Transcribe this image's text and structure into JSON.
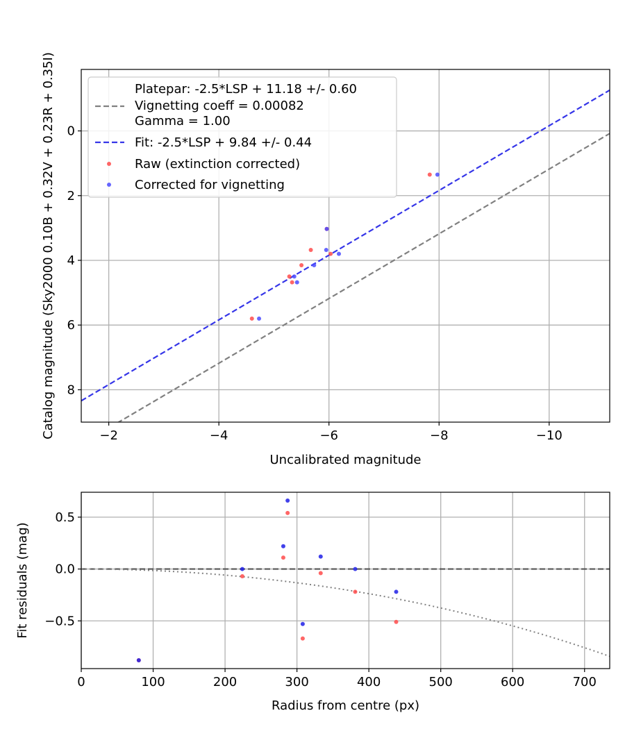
{
  "chart_data": [
    {
      "type": "scatter",
      "xlabel": "Uncalibrated magnitude",
      "ylabel": "Catalog magnitude (Sky2000 0.10B + 0.32V + 0.23R + 0.35I)",
      "xlim": [
        -1.5,
        -11.1
      ],
      "ylim": [
        9.0,
        -1.9
      ],
      "x_inverted": true,
      "y_inverted": true,
      "xticks": [
        -2,
        -4,
        -6,
        -8,
        -10
      ],
      "xtick_labels": [
        "−2",
        "−4",
        "−6",
        "−8",
        "−10"
      ],
      "yticks": [
        0,
        2,
        4,
        6,
        8
      ],
      "ytick_labels": [
        "0",
        "2",
        "4",
        "6",
        "8"
      ],
      "grid": true,
      "legend_position": "top-left",
      "legend": [
        {
          "text": "Platepar: -2.5*LSP + 11.18 +/- 0.60",
          "marker": "none"
        },
        {
          "text": "Vignetting coeff = 0.00082",
          "marker": "dashed-gray"
        },
        {
          "text": "Gamma = 1.00",
          "marker": "none"
        },
        {
          "text": "Fit: -2.5*LSP + 9.84 +/- 0.44",
          "marker": "dashed-blue"
        },
        {
          "text": "Raw (extinction corrected)",
          "marker": "red-dot"
        },
        {
          "text": "Corrected for vignetting",
          "marker": "blue-dot"
        }
      ],
      "lines": [
        {
          "name": "Platepar: -2.5*LSP + 11.18 +/- 0.60",
          "color": "#808080",
          "style": "dashed",
          "intercept": 11.18,
          "slope": 1.0
        },
        {
          "name": "Fit: -2.5*LSP + 9.84 +/- 0.44",
          "color": "#3535e8",
          "style": "dashed",
          "intercept": 9.84,
          "slope": 1.0
        }
      ],
      "series": [
        {
          "name": "Raw (extinction corrected)",
          "color": "#ff4b4b",
          "points": [
            {
              "x": -4.6,
              "y": 5.8
            },
            {
              "x": -5.28,
              "y": 4.5
            },
            {
              "x": -5.33,
              "y": 4.68
            },
            {
              "x": -5.5,
              "y": 4.15
            },
            {
              "x": -5.67,
              "y": 3.68
            },
            {
              "x": -5.96,
              "y": 3.03
            },
            {
              "x": -6.03,
              "y": 3.8
            },
            {
              "x": -7.83,
              "y": 1.35
            }
          ]
        },
        {
          "name": "Corrected for vignetting",
          "color": "#4b4bff",
          "points": [
            {
              "x": -4.73,
              "y": 5.8
            },
            {
              "x": -5.37,
              "y": 4.5
            },
            {
              "x": -5.42,
              "y": 4.68
            },
            {
              "x": -5.73,
              "y": 4.15
            },
            {
              "x": -5.95,
              "y": 3.68
            },
            {
              "x": -5.96,
              "y": 3.03
            },
            {
              "x": -6.18,
              "y": 3.8
            },
            {
              "x": -7.97,
              "y": 1.35
            }
          ]
        }
      ]
    },
    {
      "type": "scatter",
      "xlabel": "Radius from centre (px)",
      "ylabel": "Fit residuals (mag)",
      "xlim": [
        0,
        735
      ],
      "ylim": [
        -0.96,
        0.74
      ],
      "xticks": [
        0,
        100,
        200,
        300,
        400,
        500,
        600,
        700
      ],
      "xtick_labels": [
        "0",
        "100",
        "200",
        "300",
        "400",
        "500",
        "600",
        "700"
      ],
      "yticks": [
        0.5,
        0.0,
        -0.5
      ],
      "ytick_labels": [
        "0.5",
        "0.0",
        "−0.5"
      ],
      "grid": true,
      "reference_line": {
        "y": 0.0,
        "color": "#555555",
        "style": "dashed"
      },
      "vignetting_curve": {
        "coeff": 0.00082,
        "color": "#808080",
        "style": "dotted"
      },
      "series": [
        {
          "name": "Raw (extinction corrected)",
          "color": "#ff4b4b",
          "points": [
            {
              "x": 80,
              "y": -0.88
            },
            {
              "x": 224,
              "y": -0.07
            },
            {
              "x": 281,
              "y": 0.11
            },
            {
              "x": 287,
              "y": 0.54
            },
            {
              "x": 308,
              "y": -0.67
            },
            {
              "x": 333,
              "y": -0.04
            },
            {
              "x": 381,
              "y": -0.22
            },
            {
              "x": 438,
              "y": -0.51
            }
          ]
        },
        {
          "name": "Corrected for vignetting",
          "color": "#2020e6",
          "points": [
            {
              "x": 80,
              "y": -0.88
            },
            {
              "x": 224,
              "y": 0.0
            },
            {
              "x": 281,
              "y": 0.22
            },
            {
              "x": 287,
              "y": 0.66
            },
            {
              "x": 308,
              "y": -0.53
            },
            {
              "x": 333,
              "y": 0.12
            },
            {
              "x": 381,
              "y": 0.0
            },
            {
              "x": 438,
              "y": -0.22
            }
          ]
        }
      ]
    }
  ]
}
